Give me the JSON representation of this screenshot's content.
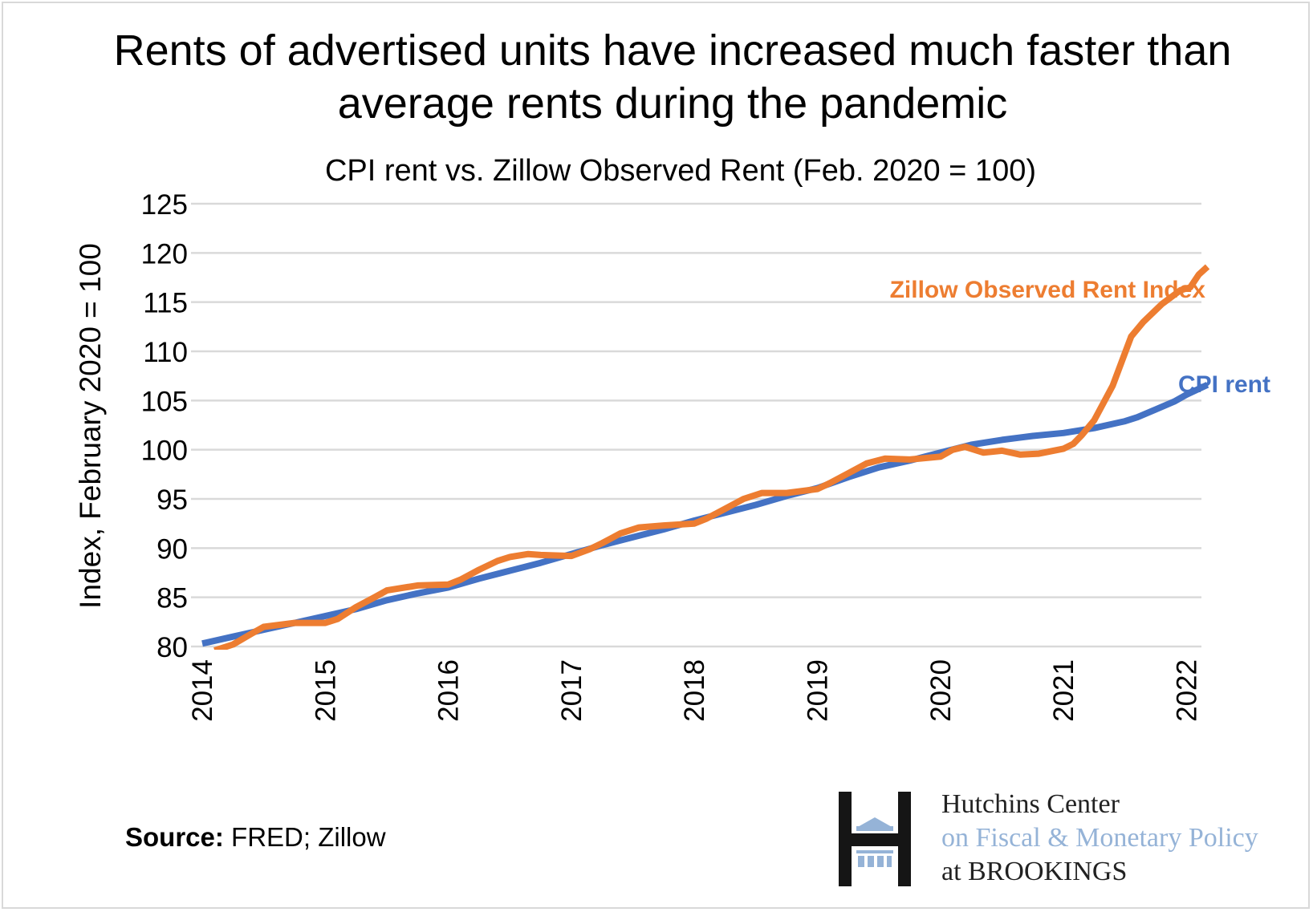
{
  "chart_data": {
    "type": "line",
    "title": "Rents of advertised units have increased much faster than average rents during the pandemic",
    "subtitle": "CPI rent vs. Zillow Observed Rent (Feb. 2020 = 100)",
    "xlabel": "",
    "ylabel": "Index, February 2020 = 100",
    "xlim": [
      2014,
      2022.2
    ],
    "ylim": [
      80,
      125
    ],
    "yticks": [
      "80",
      "85",
      "90",
      "95",
      "100",
      "105",
      "110",
      "115",
      "120",
      "125"
    ],
    "xticks": [
      "2014",
      "2015",
      "2016",
      "2017",
      "2018",
      "2019",
      "2020",
      "2021",
      "2022"
    ],
    "grid": "horizontal",
    "legend": "direct labels",
    "series": [
      {
        "name": "Zillow Observed Rent Index",
        "color": "#ed7d31",
        "x": [
          2014.1,
          2014.25,
          2014.4,
          2014.5,
          2014.75,
          2015,
          2015.1,
          2015.25,
          2015.4,
          2015.5,
          2015.75,
          2016,
          2016.1,
          2016.25,
          2016.4,
          2016.5,
          2016.65,
          2016.75,
          2017,
          2017.15,
          2017.25,
          2017.4,
          2017.55,
          2017.75,
          2018,
          2018.1,
          2018.25,
          2018.4,
          2018.55,
          2018.75,
          2019,
          2019.1,
          2019.25,
          2019.4,
          2019.55,
          2019.75,
          2020,
          2020.1,
          2020.2,
          2020.35,
          2020.5,
          2020.65,
          2020.8,
          2021,
          2021.08,
          2021.15,
          2021.25,
          2021.4,
          2021.55,
          2021.65,
          2021.8,
          2021.95,
          2022.03,
          2022.1,
          2022.17
        ],
        "y": [
          79.6,
          80.2,
          81.3,
          82.0,
          82.4,
          82.4,
          82.8,
          84.0,
          85.0,
          85.7,
          86.2,
          86.3,
          86.8,
          87.8,
          88.7,
          89.1,
          89.4,
          89.3,
          89.2,
          89.9,
          90.5,
          91.5,
          92.1,
          92.3,
          92.5,
          93.0,
          94.0,
          95.0,
          95.6,
          95.6,
          96.0,
          96.6,
          97.6,
          98.6,
          99.1,
          99.0,
          99.3,
          100.0,
          100.3,
          99.7,
          99.9,
          99.5,
          99.6,
          100.1,
          100.6,
          101.5,
          103.0,
          106.5,
          111.5,
          113.0,
          114.8,
          116.2,
          116.5,
          117.8,
          118.6
        ]
      },
      {
        "name": "CPI rent",
        "color": "#4472c4",
        "x": [
          2014,
          2014.25,
          2014.5,
          2014.75,
          2015,
          2015.25,
          2015.5,
          2015.75,
          2016,
          2016.25,
          2016.5,
          2016.75,
          2017,
          2017.25,
          2017.5,
          2017.75,
          2018,
          2018.25,
          2018.5,
          2018.75,
          2019,
          2019.25,
          2019.5,
          2019.75,
          2020,
          2020.25,
          2020.5,
          2020.75,
          2021,
          2021.25,
          2021.5,
          2021.6,
          2021.75,
          2021.9,
          2022,
          2022.17
        ],
        "y": [
          80.3,
          81.0,
          81.7,
          82.4,
          83.1,
          83.8,
          84.7,
          85.4,
          86.0,
          86.9,
          87.7,
          88.5,
          89.4,
          90.3,
          91.1,
          91.9,
          92.8,
          93.6,
          94.4,
          95.3,
          96.1,
          97.2,
          98.2,
          98.9,
          99.7,
          100.5,
          101.0,
          101.4,
          101.7,
          102.2,
          102.9,
          103.3,
          104.1,
          104.9,
          105.6,
          106.6
        ]
      }
    ]
  },
  "source": {
    "label": "Source:",
    "text": "FRED; Zillow"
  },
  "logo": {
    "line1": "Hutchins Center",
    "line2": "on Fiscal & Monetary Policy",
    "line3": "at BROOKINGS"
  }
}
